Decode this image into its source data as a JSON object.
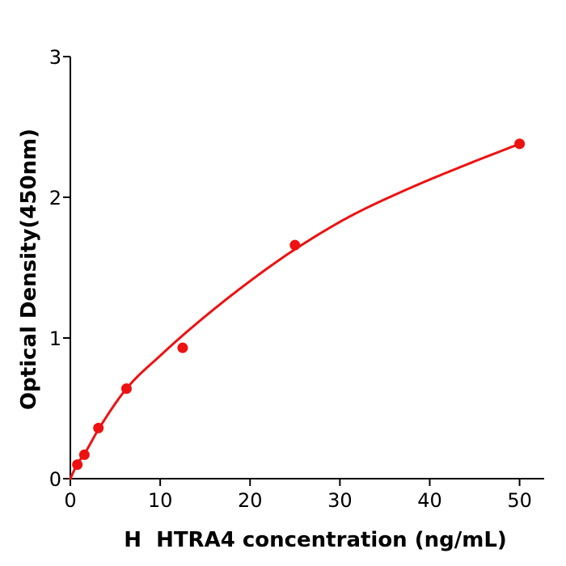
{
  "figure": {
    "background": "#ffffff",
    "axis_color": "#000000",
    "accent_red": "#ee1111"
  },
  "chart_data": {
    "type": "scatter",
    "title": "",
    "xlabel": "H  HTRA4 concentration (ng/mL)",
    "ylabel": "Optical Density(450nm)",
    "xlim": [
      0,
      52.7
    ],
    "ylim": [
      0,
      3
    ],
    "x_ticks": [
      0,
      10,
      20,
      30,
      40,
      50
    ],
    "y_ticks": [
      0,
      1,
      2,
      3
    ],
    "grid": false,
    "legend_position": "none",
    "series": [
      {
        "name": "standard-points",
        "type": "scatter",
        "color": "#ee1111",
        "marker": "circle",
        "x": [
          0.78,
          1.56,
          3.125,
          6.25,
          12.5,
          25,
          50
        ],
        "y": [
          0.1,
          0.17,
          0.36,
          0.64,
          0.93,
          1.66,
          2.38
        ]
      },
      {
        "name": "fit-curve",
        "type": "line",
        "color": "#ee1111",
        "x": [
          0,
          0.78,
          1.56,
          3.125,
          6.25,
          10.1,
          14,
          19.7,
          25,
          31,
          37.6,
          44,
          50
        ],
        "y": [
          0.0,
          0.105,
          0.175,
          0.35,
          0.64,
          0.88,
          1.1,
          1.39,
          1.63,
          1.86,
          2.06,
          2.23,
          2.38
        ]
      }
    ]
  }
}
